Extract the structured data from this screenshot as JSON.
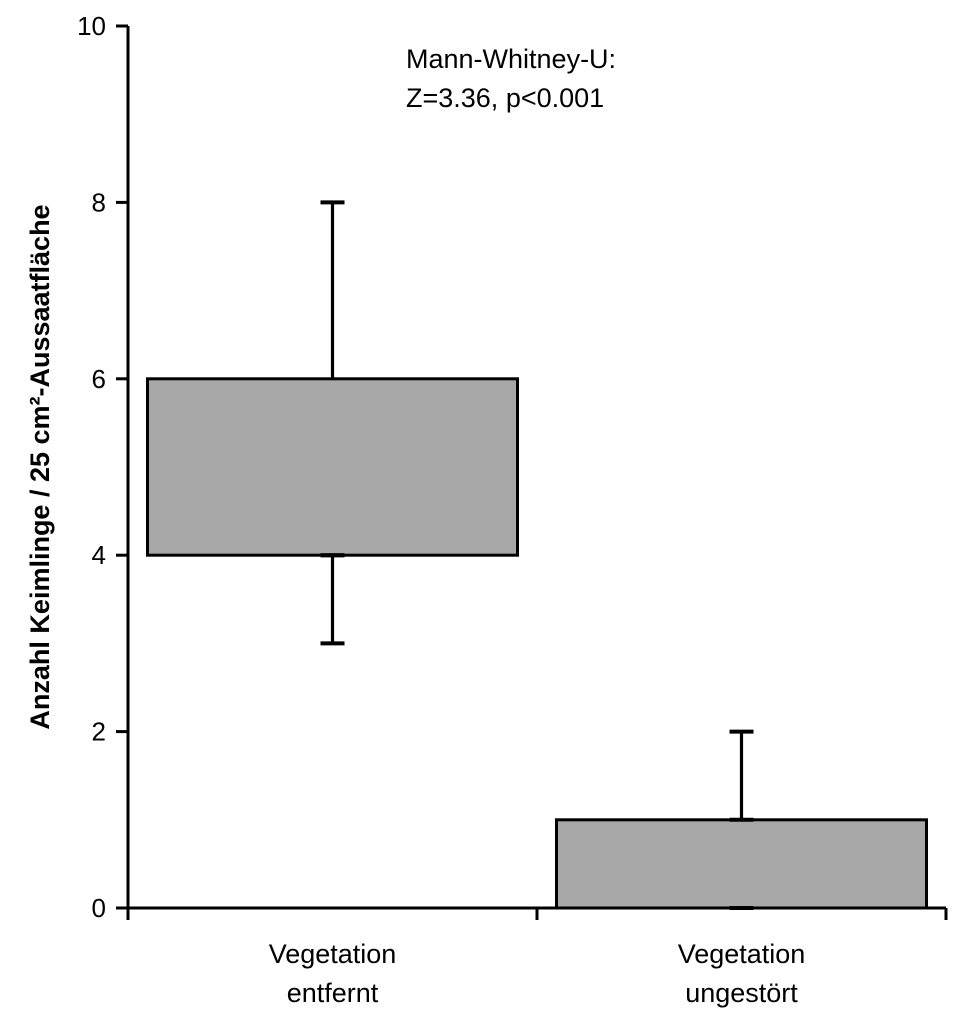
{
  "chart_data": {
    "type": "box",
    "ylabel": "Anzahl Keimlinge / 25 cm²-Aussaatfläche",
    "xlabel": "",
    "ylim": [
      0,
      10
    ],
    "yticks": [
      0,
      2,
      4,
      6,
      8,
      10
    ],
    "annotation": [
      "Mann-Whitney-U:",
      "Z=3.36, p<0.001"
    ],
    "box_color": "#a8a8a8",
    "categories": [
      {
        "label": [
          "Vegetation",
          "entfernt"
        ],
        "min": 3,
        "q1": 4,
        "median": 4,
        "q3": 6,
        "max": 8
      },
      {
        "label": [
          "Vegetation",
          "ungestört"
        ],
        "min": 0,
        "q1": 0,
        "median": 1,
        "q3": 1,
        "max": 2
      }
    ]
  }
}
